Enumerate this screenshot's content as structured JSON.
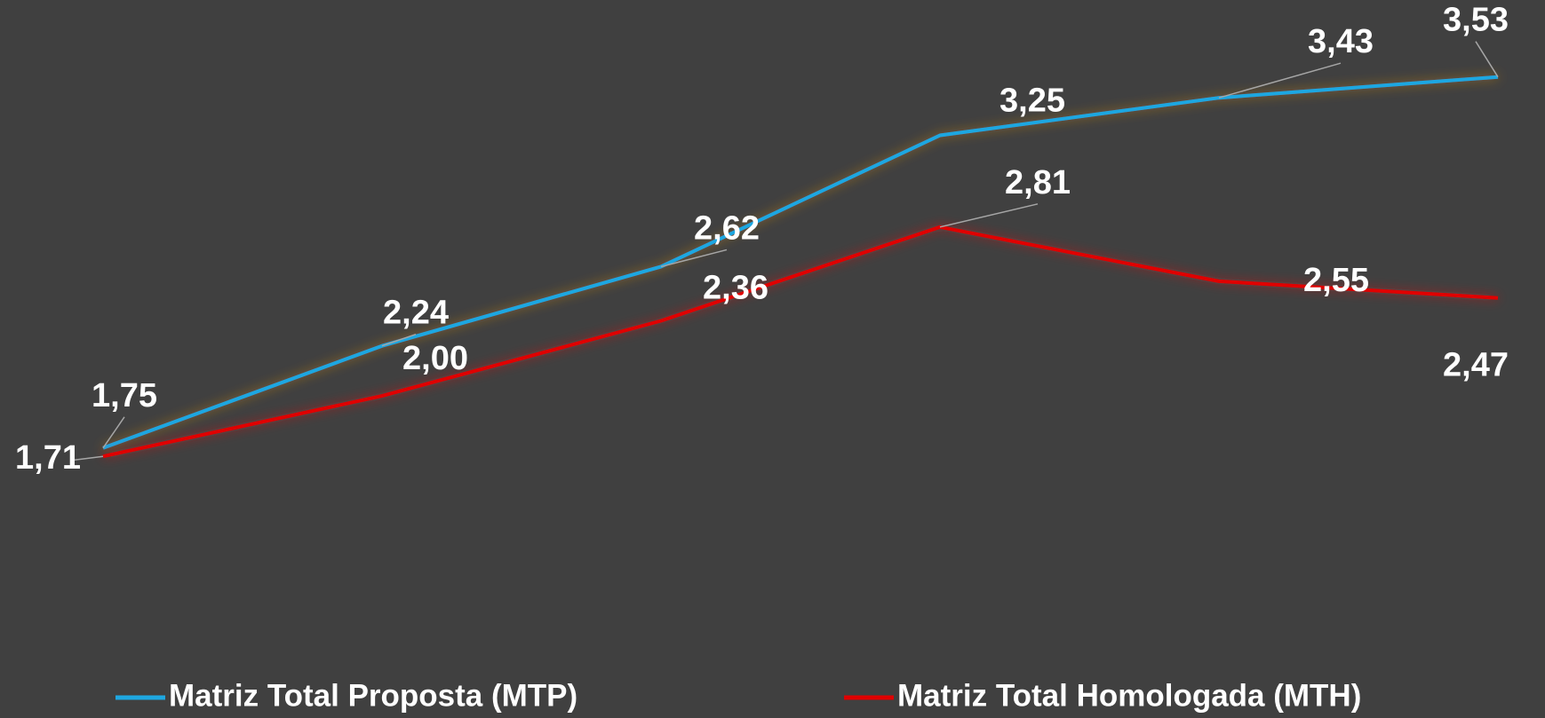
{
  "chart_data": {
    "type": "line",
    "categories": [
      null,
      null,
      null,
      null,
      null,
      null
    ],
    "series": [
      {
        "name": "Matriz Total Proposta (MTP)",
        "color": "#1ea7e1",
        "values": [
          1.75,
          2.24,
          2.62,
          3.25,
          3.43,
          3.53
        ],
        "value_labels": [
          "1,75",
          "2,24",
          "2,62",
          "3,25",
          "3,43",
          "3,53"
        ]
      },
      {
        "name": "Matriz Total Homologada (MTH)",
        "color": "#e00000",
        "values": [
          1.71,
          2.0,
          2.36,
          2.81,
          2.55,
          2.47
        ],
        "value_labels": [
          "1,71",
          "2,00",
          "2,36",
          "2,81",
          "2,55",
          "2,47"
        ]
      }
    ],
    "ylim": [
      1,
      3.75
    ],
    "legend": "bottom"
  }
}
